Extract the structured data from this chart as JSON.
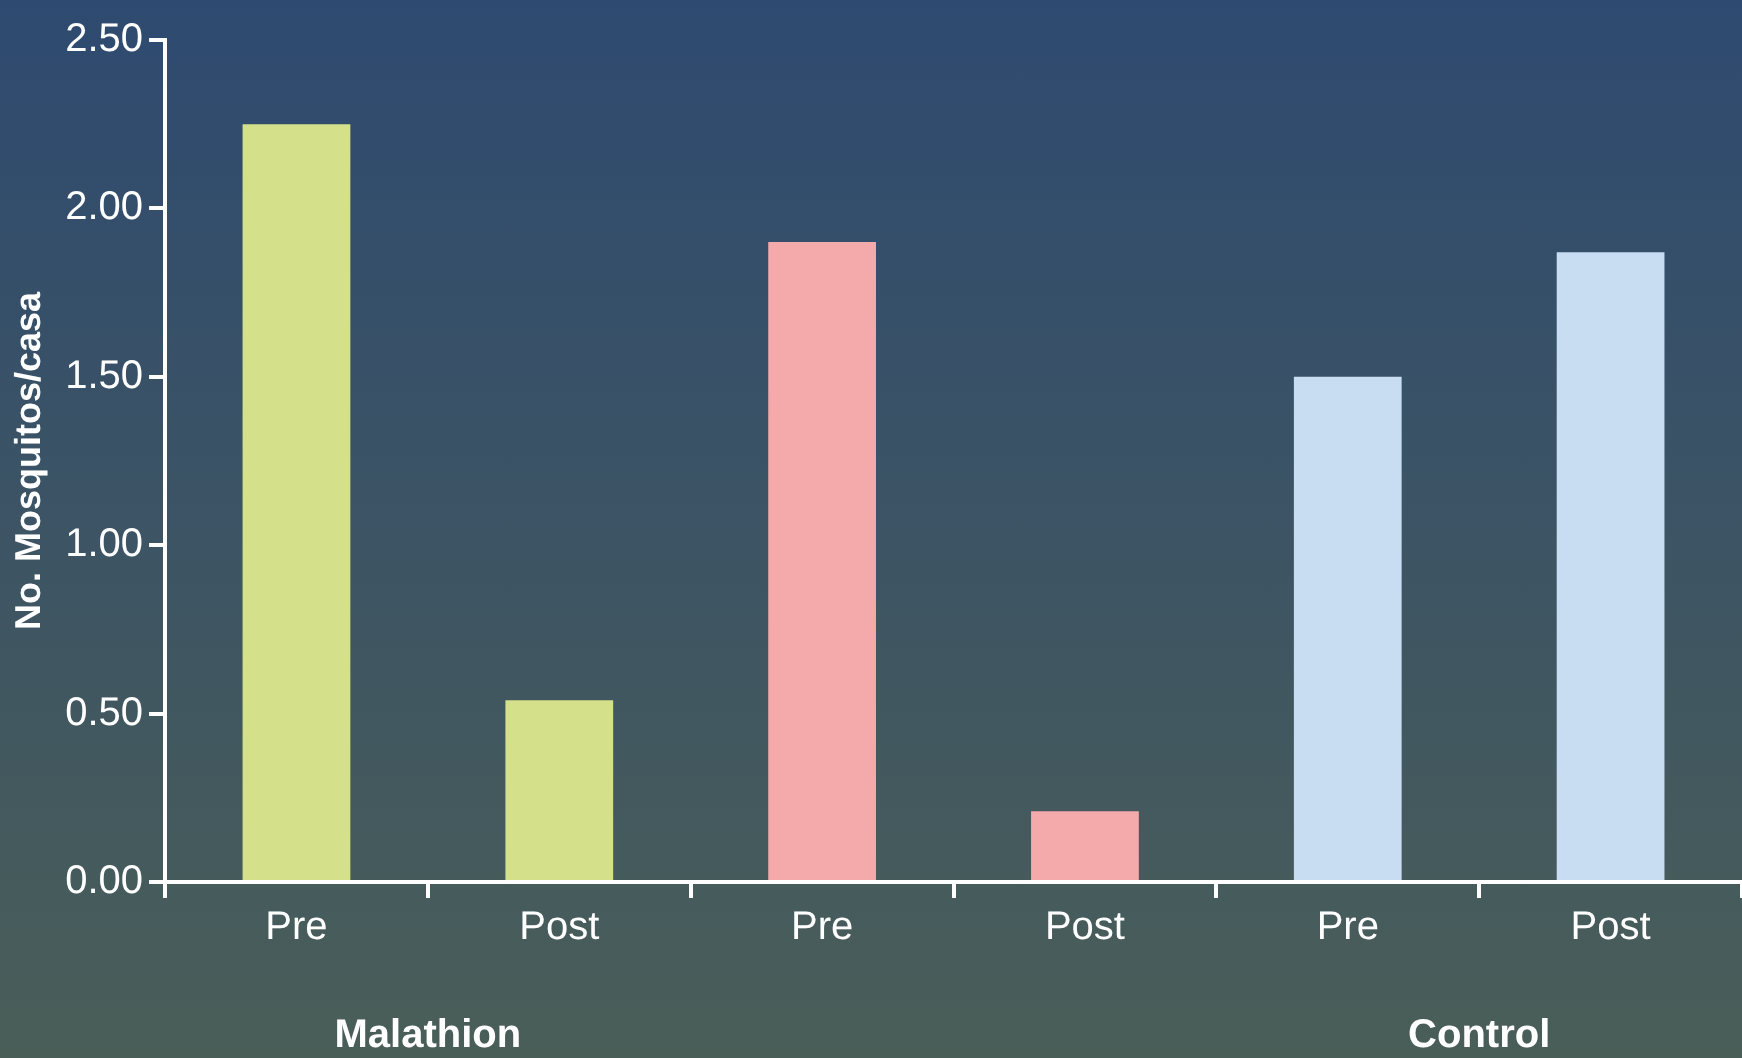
{
  "chart_data": {
    "type": "bar",
    "ylabel": "No. Mosquitos/casa",
    "categories": [
      "Pre",
      "Post",
      "Pre",
      "Post",
      "Pre",
      "Post"
    ],
    "values": [
      2.25,
      0.54,
      1.9,
      0.21,
      1.5,
      1.87
    ],
    "colors": [
      "#d4e08a",
      "#d4e08a",
      "#f4a9ab",
      "#f4a9ab",
      "#c9ddf2",
      "#c9ddf2"
    ],
    "ylim": [
      0,
      2.5
    ],
    "yticks": [
      {
        "value": 0,
        "label": "0.00"
      },
      {
        "value": 0.5,
        "label": "0.50"
      },
      {
        "value": 1,
        "label": "1.00"
      },
      {
        "value": 1.5,
        "label": "1.50"
      },
      {
        "value": 2,
        "label": "2.00"
      },
      {
        "value": 2.5,
        "label": "2.50"
      }
    ],
    "annotations": [
      "Malathion",
      null,
      "Control"
    ],
    "grid": false,
    "legend": false
  }
}
